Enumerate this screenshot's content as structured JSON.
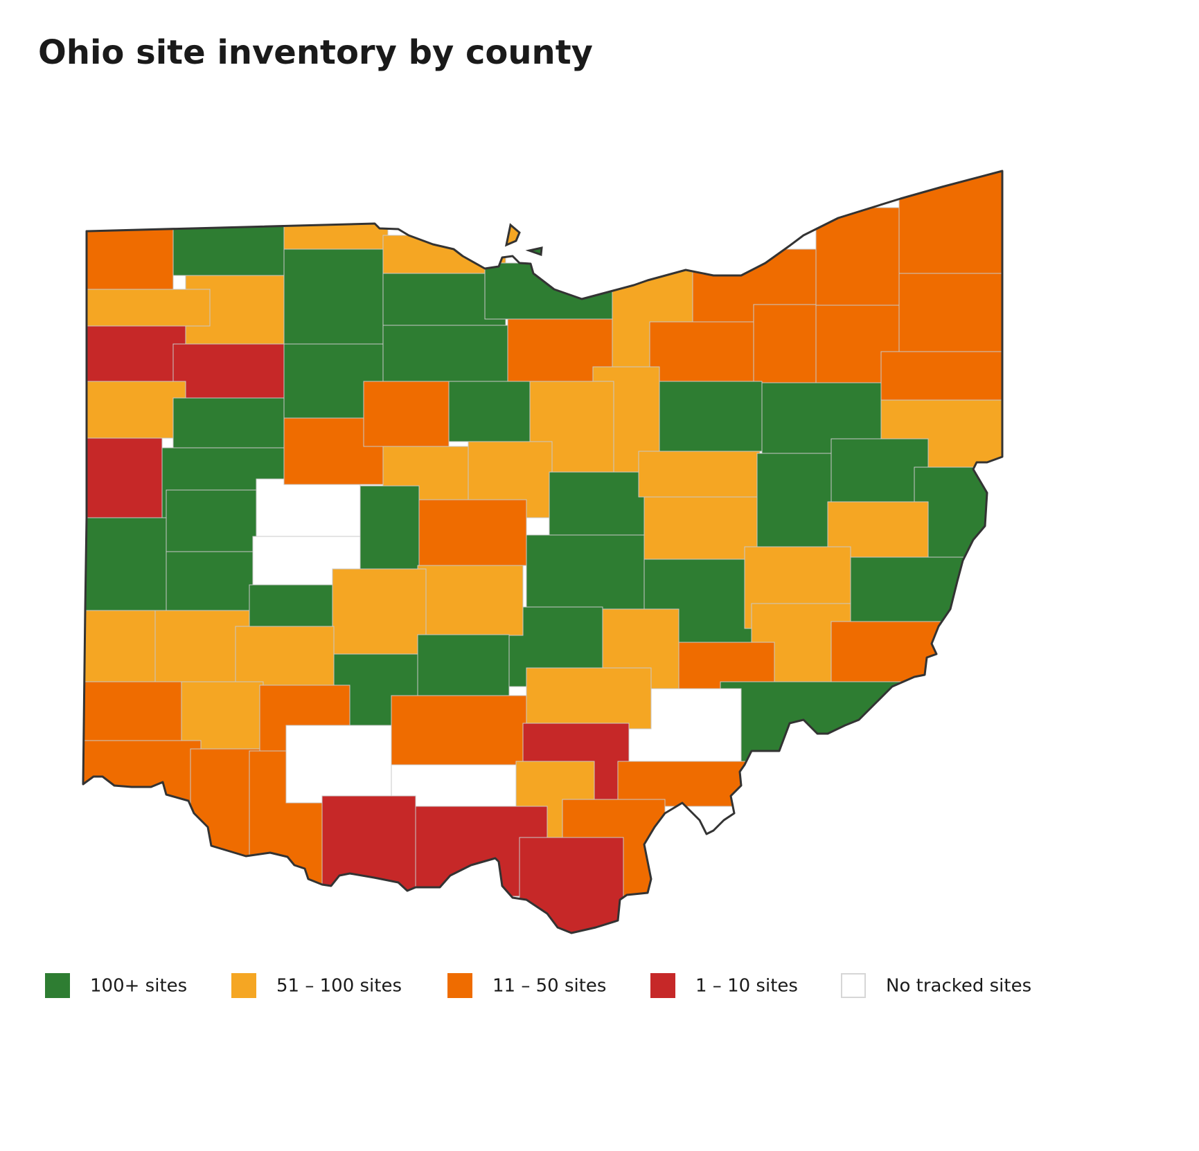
{
  "title": "Ohio site inventory by county",
  "legend": [
    {
      "label": "100+ sites",
      "color": "#2e7d32"
    },
    {
      "label": "51 – 100 sites",
      "color": "#f5a623"
    },
    {
      "label": "11 – 50 sites",
      "color": "#ef6c00"
    },
    {
      "label": "1 – 10 sites",
      "color": "#c62828"
    },
    {
      "label": "No tracked sites",
      "color": "#ffffff"
    }
  ]
}
